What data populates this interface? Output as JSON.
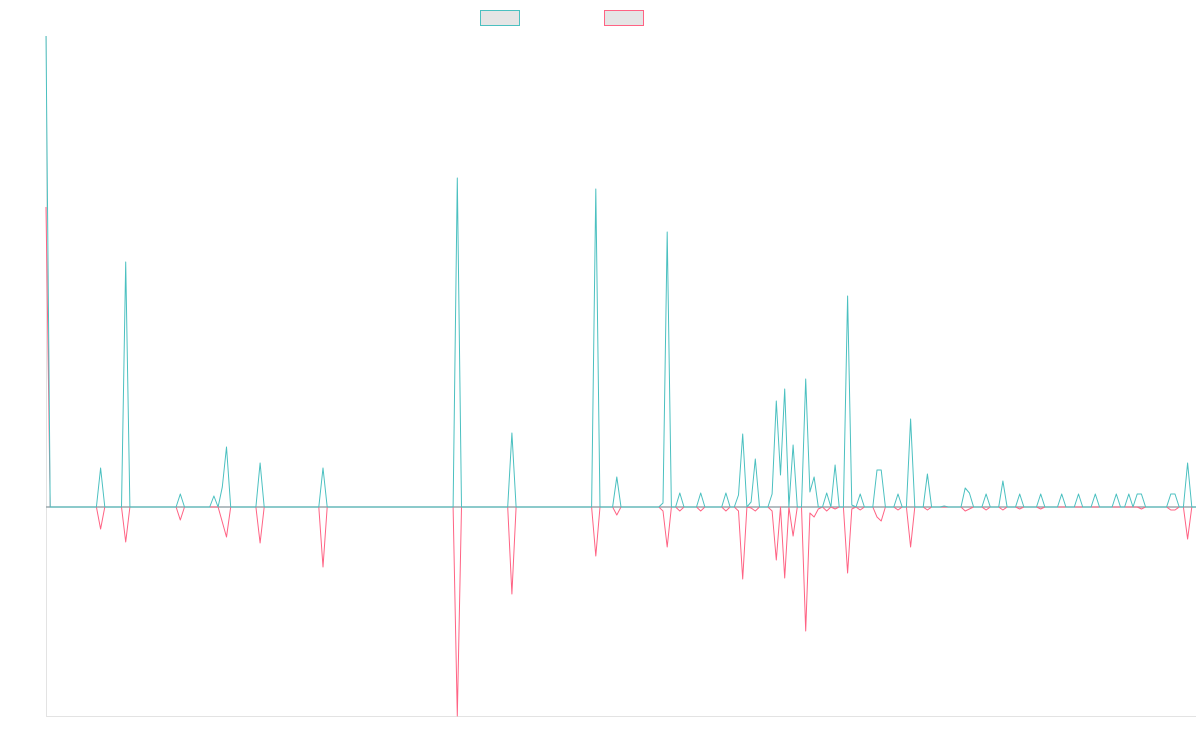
{
  "chart_data": {
    "type": "line",
    "title": "",
    "xlabel": "",
    "ylabel": "",
    "x_count": 275,
    "ylim": [
      -209,
      471
    ],
    "grid": false,
    "legend_position": "top-center",
    "baseline": 0,
    "series": [
      {
        "name": "",
        "color": "#4bc0c0",
        "spikes": [
          [
            0,
            471
          ],
          [
            13,
            39
          ],
          [
            19,
            245
          ],
          [
            32,
            13
          ],
          [
            40,
            11
          ],
          [
            42,
            20
          ],
          [
            43,
            60
          ],
          [
            51,
            44
          ],
          [
            66,
            39
          ],
          [
            98,
            329
          ],
          [
            111,
            74
          ],
          [
            131,
            318
          ],
          [
            136,
            30
          ],
          [
            147,
            4
          ],
          [
            148,
            275
          ],
          [
            151,
            14
          ],
          [
            156,
            14
          ],
          [
            162,
            14
          ],
          [
            165,
            12
          ],
          [
            166,
            73
          ],
          [
            168,
            5
          ],
          [
            169,
            48
          ],
          [
            173,
            13
          ],
          [
            174,
            106
          ],
          [
            175,
            32
          ],
          [
            176,
            118
          ],
          [
            178,
            62
          ],
          [
            181,
            128
          ],
          [
            182,
            15
          ],
          [
            183,
            30
          ],
          [
            186,
            14
          ],
          [
            188,
            42
          ],
          [
            191,
            211
          ],
          [
            192,
            2
          ],
          [
            194,
            13
          ],
          [
            198,
            37
          ],
          [
            199,
            37
          ],
          [
            203,
            13
          ],
          [
            206,
            88
          ],
          [
            210,
            33
          ],
          [
            214,
            1
          ],
          [
            219,
            19
          ],
          [
            220,
            14
          ],
          [
            224,
            13
          ],
          [
            228,
            26
          ],
          [
            232,
            13
          ],
          [
            237,
            13
          ],
          [
            242,
            13
          ],
          [
            246,
            13
          ],
          [
            250,
            13
          ],
          [
            255,
            13
          ],
          [
            258,
            13
          ],
          [
            260,
            13
          ],
          [
            261,
            13
          ],
          [
            268,
            13
          ],
          [
            269,
            13
          ],
          [
            272,
            44
          ]
        ]
      },
      {
        "name": "",
        "color": "#ff6384",
        "spikes": [
          [
            0,
            300
          ],
          [
            13,
            -22
          ],
          [
            19,
            -35
          ],
          [
            32,
            -13
          ],
          [
            42,
            -15
          ],
          [
            43,
            -30
          ],
          [
            51,
            -36
          ],
          [
            66,
            -60
          ],
          [
            98,
            -209
          ],
          [
            111,
            -87
          ],
          [
            131,
            -49
          ],
          [
            136,
            -8
          ],
          [
            147,
            -4
          ],
          [
            148,
            -40
          ],
          [
            151,
            -4
          ],
          [
            156,
            -4
          ],
          [
            162,
            -4
          ],
          [
            165,
            -4
          ],
          [
            166,
            -72
          ],
          [
            168,
            -1
          ],
          [
            169,
            -4
          ],
          [
            173,
            -4
          ],
          [
            174,
            -53
          ],
          [
            176,
            -71
          ],
          [
            178,
            -29
          ],
          [
            181,
            -124
          ],
          [
            182,
            -6
          ],
          [
            183,
            -10
          ],
          [
            184,
            -2
          ],
          [
            186,
            -4
          ],
          [
            188,
            -2
          ],
          [
            191,
            -66
          ],
          [
            192,
            -2
          ],
          [
            194,
            -3
          ],
          [
            198,
            -10
          ],
          [
            199,
            -14
          ],
          [
            203,
            -3
          ],
          [
            206,
            -40
          ],
          [
            210,
            -3
          ],
          [
            219,
            -4
          ],
          [
            220,
            -2
          ],
          [
            224,
            -3
          ],
          [
            228,
            -3
          ],
          [
            232,
            -2
          ],
          [
            237,
            -2
          ],
          [
            261,
            -2
          ],
          [
            268,
            -3
          ],
          [
            269,
            -3
          ],
          [
            272,
            -32
          ]
        ]
      }
    ]
  }
}
